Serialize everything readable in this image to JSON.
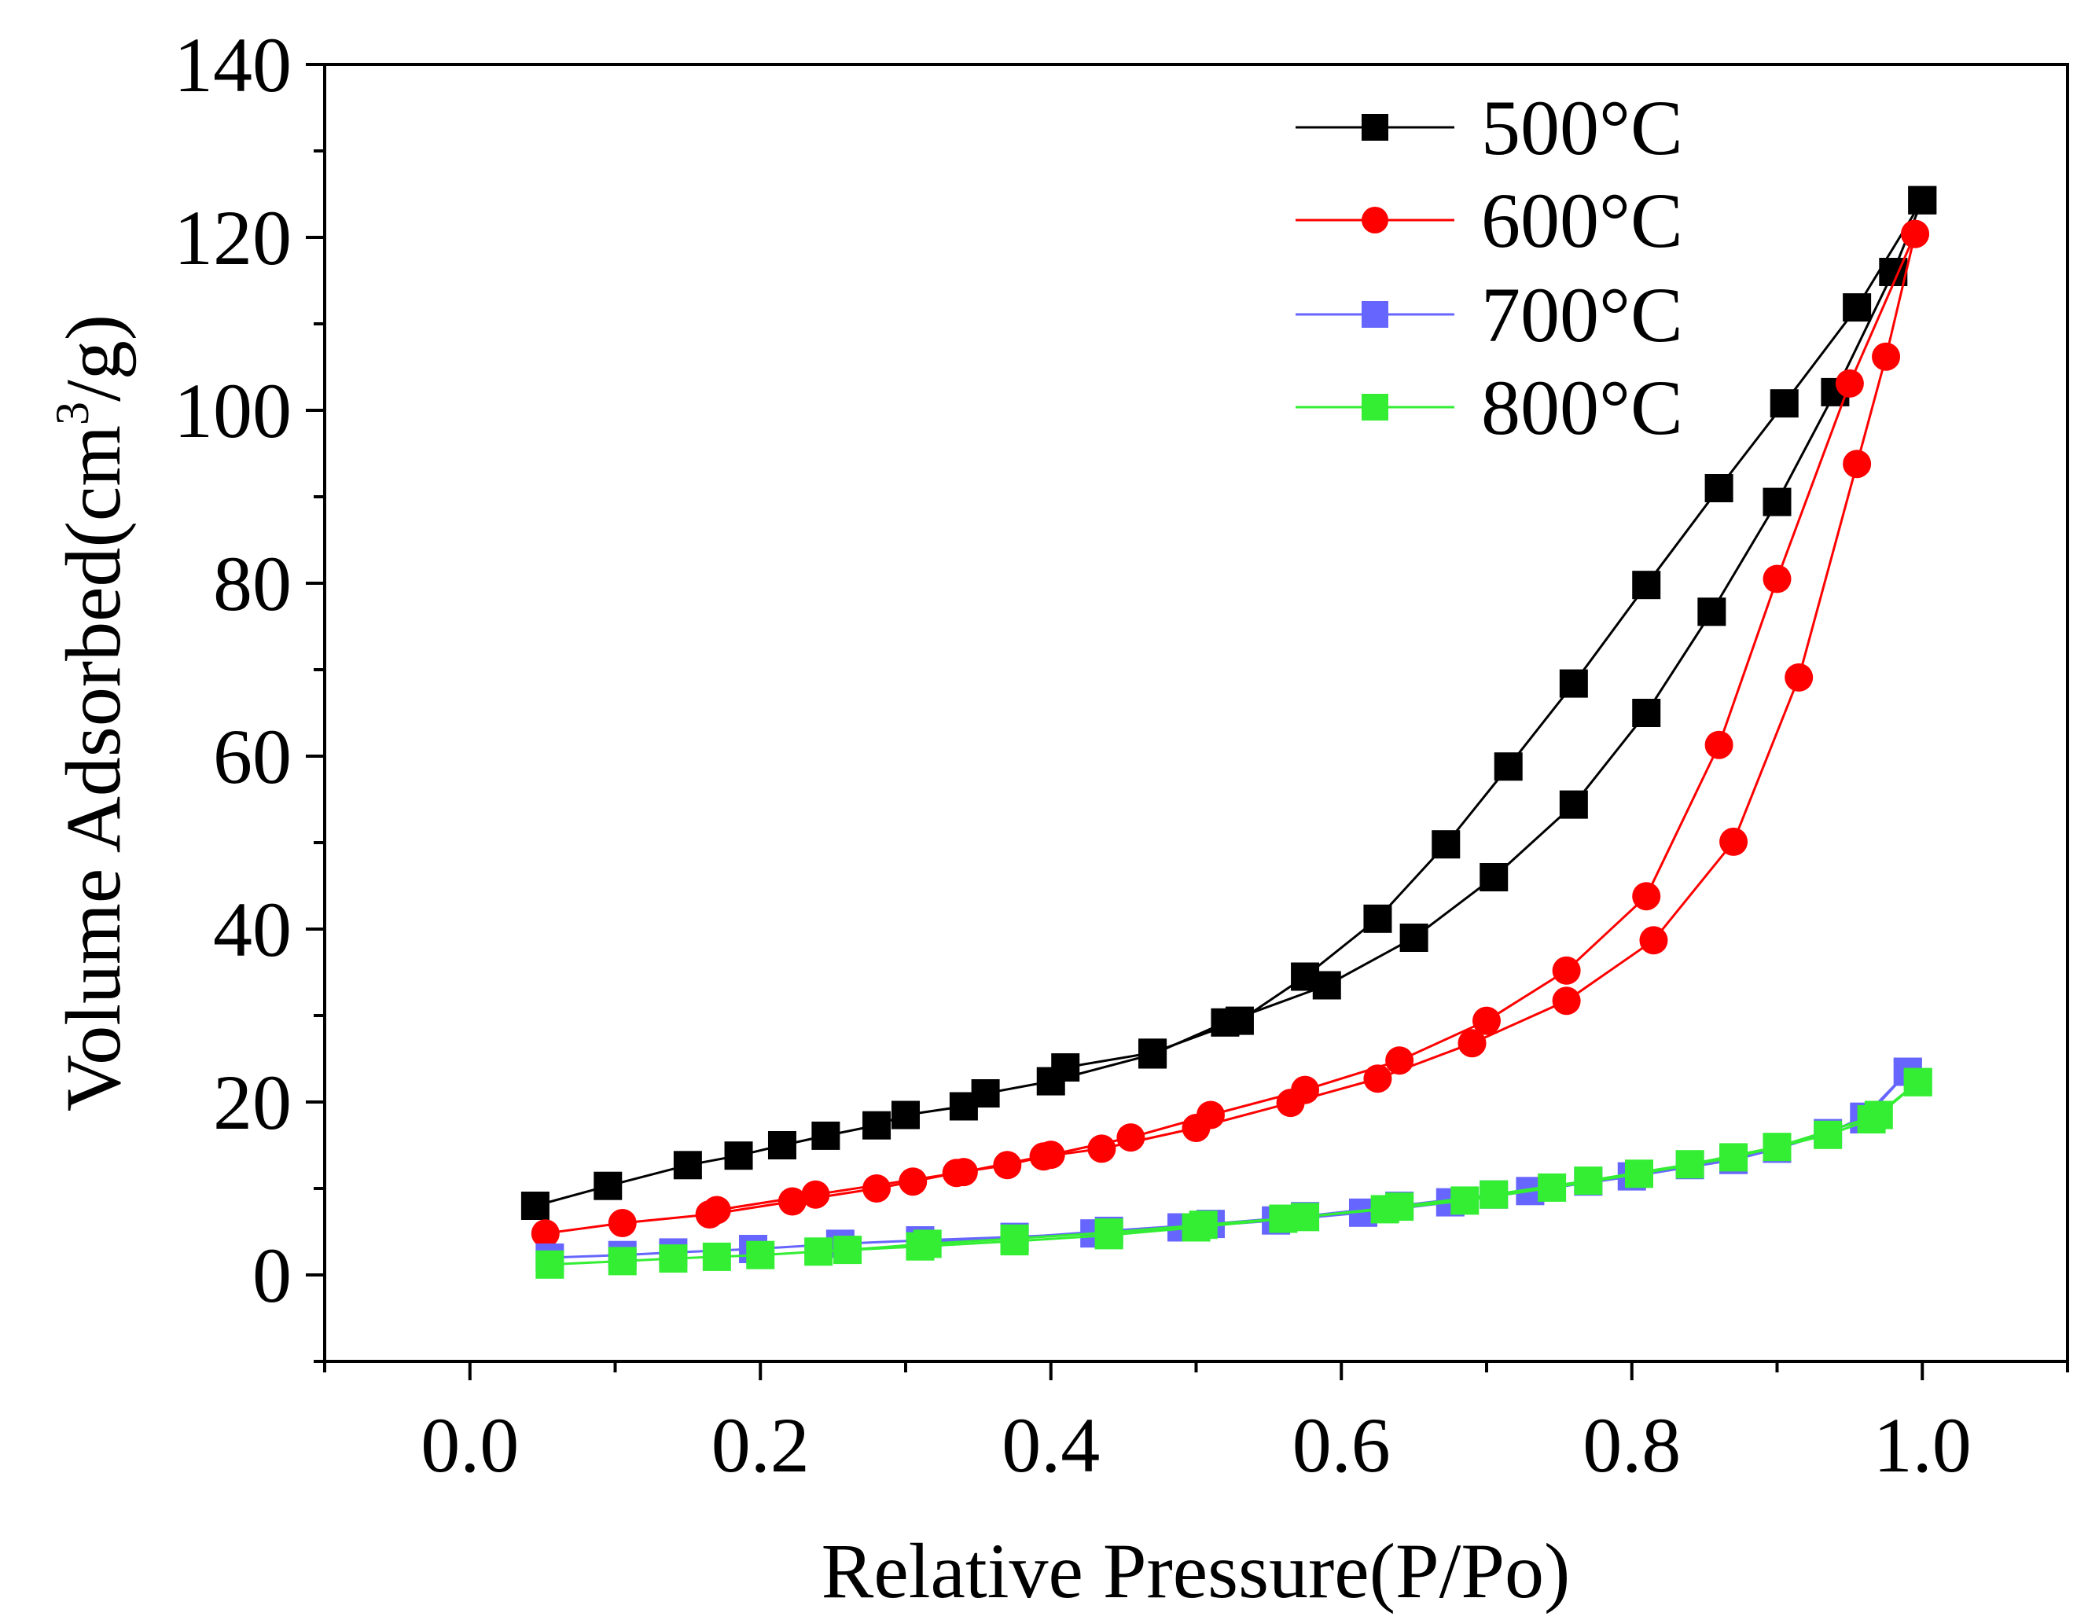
{
  "chart_data": {
    "type": "scatter",
    "xlabel": "Relative Pressure(P/Po)",
    "ylabel": "Volume Adsorbed(cm³/g)",
    "ylabel_parts": {
      "main": "Volume Adsorbed(cm",
      "sup": "3",
      "tail": "/g)"
    },
    "xlim": [
      -0.1,
      1.1
    ],
    "ylim": [
      -10,
      140
    ],
    "x_ticks": [
      "0.0",
      "0.2",
      "0.4",
      "0.6",
      "0.8",
      "1.0"
    ],
    "y_ticks": [
      "0",
      "20",
      "40",
      "60",
      "80",
      "100",
      "120",
      "140"
    ],
    "legend_position": "top-right",
    "series": [
      {
        "name": "500°C",
        "color": "#000000",
        "marker": "square",
        "adsorption": [
          [
            0.045,
            8
          ],
          [
            0.095,
            10.3
          ],
          [
            0.15,
            12.7
          ],
          [
            0.185,
            13.8
          ],
          [
            0.215,
            15
          ],
          [
            0.245,
            16.1
          ],
          [
            0.28,
            17.3
          ],
          [
            0.3,
            18.5
          ],
          [
            0.34,
            19.5
          ],
          [
            0.355,
            21
          ],
          [
            0.4,
            22.4
          ],
          [
            0.47,
            25.5
          ],
          [
            0.52,
            29.2
          ],
          [
            0.59,
            33.5
          ],
          [
            0.65,
            39
          ],
          [
            0.705,
            46
          ],
          [
            0.76,
            54.4
          ],
          [
            0.81,
            65
          ],
          [
            0.855,
            76.7
          ],
          [
            0.9,
            89.4
          ],
          [
            0.94,
            102.1
          ],
          [
            0.98,
            116
          ],
          [
            1.0,
            124.3
          ]
        ],
        "desorption": [
          [
            1.0,
            124.3
          ],
          [
            0.955,
            111.9
          ],
          [
            0.905,
            100.8
          ],
          [
            0.86,
            91
          ],
          [
            0.81,
            79.8
          ],
          [
            0.76,
            68.4
          ],
          [
            0.715,
            58.8
          ],
          [
            0.672,
            49.8
          ],
          [
            0.625,
            41.2
          ],
          [
            0.575,
            34.5
          ],
          [
            0.53,
            29.4
          ],
          [
            0.47,
            25.7
          ],
          [
            0.41,
            24
          ]
        ]
      },
      {
        "name": "600°C",
        "color": "#ff0000",
        "marker": "circle",
        "adsorption": [
          [
            0.052,
            4.8
          ],
          [
            0.105,
            6
          ],
          [
            0.165,
            7
          ],
          [
            0.222,
            8.5
          ],
          [
            0.28,
            10
          ],
          [
            0.305,
            10.8
          ],
          [
            0.335,
            11.8
          ],
          [
            0.37,
            12.7
          ],
          [
            0.395,
            13.7
          ],
          [
            0.435,
            14.6
          ],
          [
            0.5,
            17
          ],
          [
            0.565,
            19.9
          ],
          [
            0.625,
            22.7
          ],
          [
            0.69,
            26.8
          ],
          [
            0.755,
            31.7
          ],
          [
            0.815,
            38.7
          ],
          [
            0.87,
            50.1
          ],
          [
            0.915,
            69.1
          ],
          [
            0.955,
            93.8
          ],
          [
            0.975,
            106.2
          ],
          [
            0.995,
            120.4
          ]
        ],
        "desorption": [
          [
            0.995,
            120.4
          ],
          [
            0.95,
            103.1
          ],
          [
            0.9,
            80.5
          ],
          [
            0.86,
            61.3
          ],
          [
            0.81,
            43.8
          ],
          [
            0.755,
            35.2
          ],
          [
            0.7,
            29.4
          ],
          [
            0.64,
            24.8
          ],
          [
            0.575,
            21.4
          ],
          [
            0.51,
            18.5
          ],
          [
            0.455,
            15.9
          ],
          [
            0.4,
            13.9
          ],
          [
            0.34,
            11.9
          ],
          [
            0.238,
            9.3
          ],
          [
            0.17,
            7.5
          ]
        ]
      },
      {
        "name": "700°C",
        "color": "#6666ff",
        "marker": "square",
        "adsorption": [
          [
            0.055,
            2
          ],
          [
            0.105,
            2.3
          ],
          [
            0.14,
            2.6
          ],
          [
            0.195,
            3
          ],
          [
            0.255,
            3.6
          ],
          [
            0.31,
            4
          ],
          [
            0.375,
            4.4
          ],
          [
            0.43,
            4.8
          ],
          [
            0.49,
            5.5
          ],
          [
            0.555,
            6.3
          ],
          [
            0.615,
            7.2
          ],
          [
            0.675,
            8.4
          ],
          [
            0.73,
            9.7
          ],
          [
            0.8,
            11.4
          ],
          [
            0.87,
            13.3
          ],
          [
            0.9,
            14.6
          ],
          [
            0.935,
            16.4
          ],
          [
            0.96,
            18.3
          ],
          [
            0.99,
            23.5
          ]
        ],
        "desorption": [
          [
            0.99,
            23.5
          ],
          [
            0.96,
            18
          ],
          [
            0.9,
            14.6
          ],
          [
            0.84,
            12.7
          ],
          [
            0.77,
            10.8
          ],
          [
            0.705,
            9.3
          ],
          [
            0.64,
            8
          ],
          [
            0.575,
            6.8
          ],
          [
            0.51,
            5.9
          ],
          [
            0.44,
            5.1
          ],
          [
            0.375,
            4.3
          ],
          [
            0.31,
            3.7
          ]
        ]
      },
      {
        "name": "800°C",
        "color": "#33ee33",
        "marker": "square",
        "adsorption": [
          [
            0.055,
            1.2
          ],
          [
            0.105,
            1.6
          ],
          [
            0.14,
            1.9
          ],
          [
            0.17,
            2.1
          ],
          [
            0.2,
            2.3
          ],
          [
            0.24,
            2.7
          ],
          [
            0.31,
            3.3
          ],
          [
            0.375,
            3.9
          ],
          [
            0.44,
            4.6
          ],
          [
            0.5,
            5.5
          ],
          [
            0.56,
            6.5
          ],
          [
            0.63,
            7.6
          ],
          [
            0.685,
            8.6
          ],
          [
            0.745,
            10.1
          ],
          [
            0.805,
            11.7
          ],
          [
            0.87,
            13.6
          ],
          [
            0.935,
            16.2
          ],
          [
            0.965,
            18
          ],
          [
            0.997,
            22.3
          ]
        ],
        "desorption": [
          [
            0.997,
            22.3
          ],
          [
            0.97,
            18.5
          ],
          [
            0.9,
            14.8
          ],
          [
            0.84,
            12.8
          ],
          [
            0.77,
            10.9
          ],
          [
            0.705,
            9.3
          ],
          [
            0.64,
            7.9
          ],
          [
            0.575,
            6.7
          ],
          [
            0.505,
            5.8
          ],
          [
            0.44,
            4.9
          ],
          [
            0.375,
            4.2
          ],
          [
            0.315,
            3.6
          ],
          [
            0.26,
            2.9
          ]
        ]
      }
    ]
  }
}
